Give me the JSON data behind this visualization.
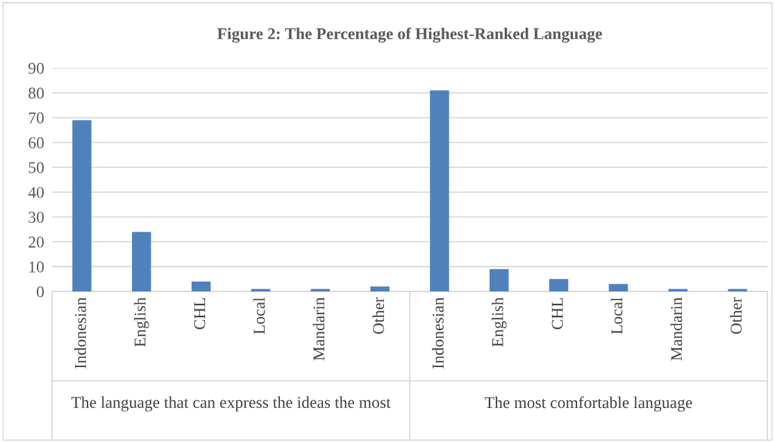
{
  "chart_data": {
    "type": "bar",
    "title": "Figure 2: The Percentage of Highest-Ranked Language",
    "categories": [
      "Indonesian",
      "English",
      "CHL",
      "Local",
      "Mandarin",
      "Other",
      "Indonesian",
      "English",
      "CHL",
      "Local",
      "Mandarin",
      "Other"
    ],
    "values": [
      69,
      24,
      4,
      1,
      1,
      2,
      81,
      9,
      5,
      3,
      1,
      1
    ],
    "color": "#4f81bd",
    "ylim": [
      0,
      90
    ],
    "yticks": [
      0,
      10,
      20,
      30,
      40,
      50,
      60,
      70,
      80,
      90
    ],
    "grid": "y",
    "annotations": [
      "The language that can express the ideas the most",
      "The most comfortable language"
    ]
  }
}
